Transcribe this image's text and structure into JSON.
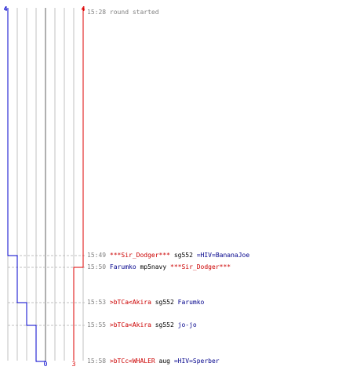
{
  "teams": {
    "blue": {
      "color": "#0000cc",
      "start_label": "4",
      "end_label": "0"
    },
    "red": {
      "color": "#dd0000",
      "start_label": "4",
      "end_label": "3"
    }
  },
  "colors": {
    "grid": "#c0c0c0",
    "center": "#606060",
    "dash": "#c0c0c0",
    "time": "#808080",
    "blue_text": "#00008b",
    "red_text": "#cc0000"
  },
  "events": [
    {
      "time": "15:28",
      "text": "round started"
    },
    {
      "time": "15:49",
      "killer": "***Sir_Dodger***",
      "killer_team": "red",
      "weapon": "sg552",
      "victim": "=HIV=BananaJoe",
      "victim_team": "blue"
    },
    {
      "time": "15:50",
      "killer": "Farumko",
      "killer_team": "blue",
      "weapon": "mp5navy",
      "victim": "***Sir_Dodger***",
      "victim_team": "red"
    },
    {
      "time": "15:53",
      "killer": ">bTCa<Akira",
      "killer_team": "red",
      "weapon": "sg552",
      "victim": "Farumko",
      "victim_team": "blue"
    },
    {
      "time": "15:55",
      "killer": ">bTCa<Akira",
      "killer_team": "red",
      "weapon": "sg552",
      "victim": "jo-jo",
      "victim_team": "blue"
    },
    {
      "time": "15:58",
      "killer": ">bTCc<WHALER",
      "killer_team": "red",
      "weapon": "aug",
      "victim": "=HIV=Sperber",
      "victim_team": "blue"
    }
  ]
}
